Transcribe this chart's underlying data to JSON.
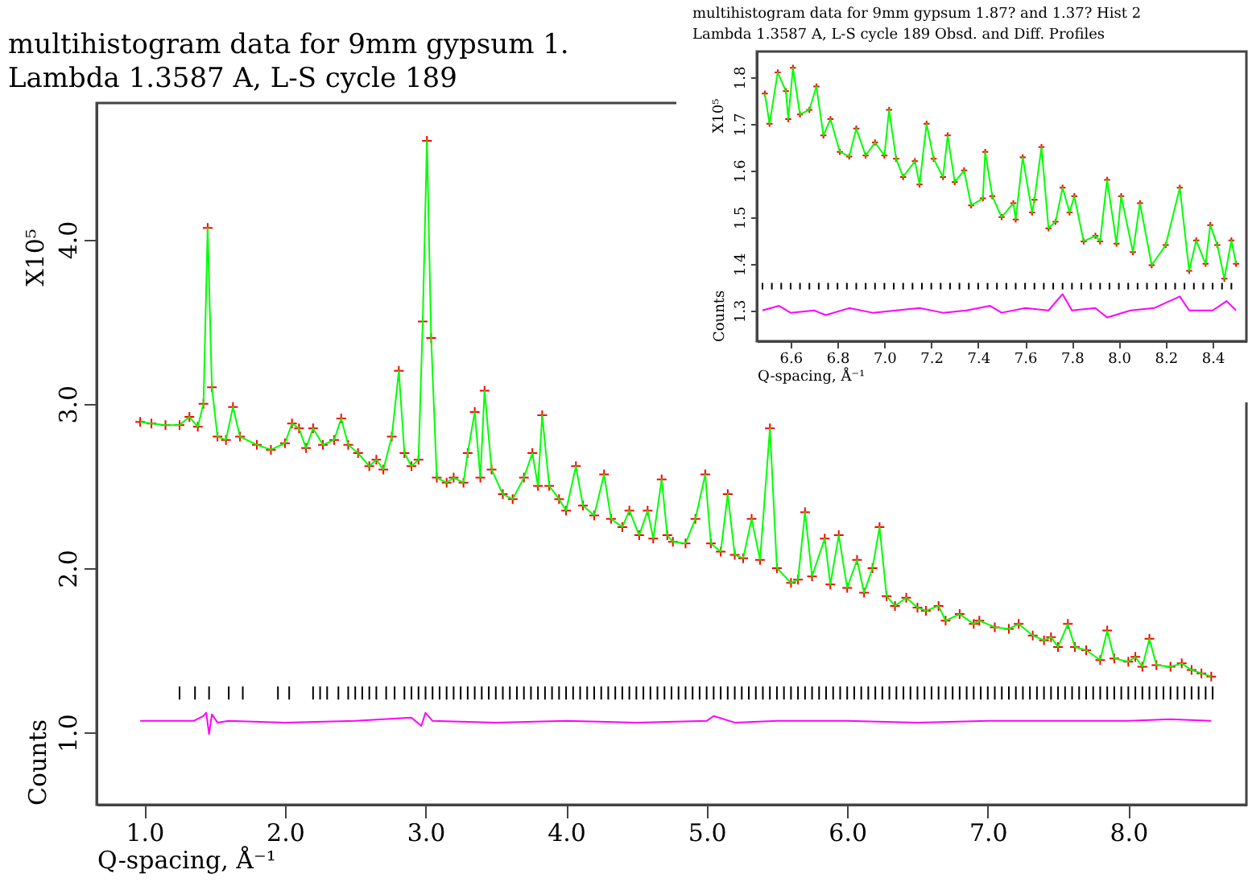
{
  "chart_data": [
    {
      "type": "line",
      "title": "multihistogram data for 9mm gypsum 1.",
      "subtitle": "Lambda 1.3587 A, L-S cycle  189",
      "xlabel": "Q-spacing, Å⁻¹",
      "ylabel": "Counts",
      "annotations": [
        "X10⁵"
      ],
      "xlim": [
        0.66,
        8.84
      ],
      "ylim": [
        0.56,
        4.83
      ],
      "xticks": [
        {
          "value": 1,
          "label": "1.0"
        },
        {
          "value": 2,
          "label": "2.0"
        },
        {
          "value": 3,
          "label": "3.0"
        },
        {
          "value": 4,
          "label": "4.0"
        },
        {
          "value": 5,
          "label": "5.0"
        },
        {
          "value": 6,
          "label": "6.0"
        },
        {
          "value": 7,
          "label": "7.0"
        },
        {
          "value": 8,
          "label": "8.0"
        }
      ],
      "yticks": [
        {
          "value": 1,
          "label": "1.0"
        },
        {
          "value": 2,
          "label": "2.0"
        },
        {
          "value": 3,
          "label": "3.0"
        },
        {
          "value": 4,
          "label": "4.0"
        }
      ],
      "x": [
        0.97,
        1.05,
        1.15,
        1.25,
        1.32,
        1.38,
        1.42,
        1.45,
        1.48,
        1.52,
        1.58,
        1.63,
        1.68,
        1.8,
        1.9,
        2.0,
        2.05,
        2.1,
        2.15,
        2.2,
        2.27,
        2.35,
        2.4,
        2.45,
        2.52,
        2.6,
        2.65,
        2.7,
        2.76,
        2.81,
        2.85,
        2.9,
        2.95,
        2.98,
        3.01,
        3.04,
        3.08,
        3.15,
        3.2,
        3.27,
        3.3,
        3.35,
        3.39,
        3.42,
        3.47,
        3.55,
        3.62,
        3.7,
        3.76,
        3.8,
        3.83,
        3.88,
        3.95,
        4.0,
        4.07,
        4.12,
        4.2,
        4.27,
        4.32,
        4.4,
        4.45,
        4.52,
        4.58,
        4.62,
        4.68,
        4.72,
        4.76,
        4.85,
        4.92,
        4.99,
        5.03,
        5.1,
        5.15,
        5.2,
        5.26,
        5.32,
        5.38,
        5.45,
        5.5,
        5.6,
        5.65,
        5.7,
        5.75,
        5.84,
        5.88,
        5.94,
        6.0,
        6.07,
        6.12,
        6.18,
        6.23,
        6.28,
        6.34,
        6.42,
        6.5,
        6.56,
        6.65,
        6.7,
        6.8,
        6.9,
        6.94,
        7.05,
        7.15,
        7.22,
        7.32,
        7.4,
        7.45,
        7.5,
        7.57,
        7.62,
        7.7,
        7.8,
        7.85,
        7.9,
        8.0,
        8.05,
        8.1,
        8.15,
        8.2,
        8.3,
        8.38,
        8.45,
        8.52,
        8.59
      ],
      "series": [
        {
          "type": "scatter",
          "marker": "cross",
          "color": "#ff0000",
          "values": [
            2.89,
            2.88,
            2.87,
            2.87,
            2.92,
            2.86,
            3.0,
            4.07,
            3.1,
            2.8,
            2.78,
            2.98,
            2.8,
            2.75,
            2.72,
            2.76,
            2.88,
            2.85,
            2.73,
            2.85,
            2.75,
            2.78,
            2.91,
            2.75,
            2.7,
            2.62,
            2.66,
            2.6,
            2.8,
            3.2,
            2.7,
            2.62,
            2.66,
            3.5,
            4.6,
            3.4,
            2.55,
            2.52,
            2.55,
            2.52,
            2.7,
            2.95,
            2.55,
            3.08,
            2.6,
            2.45,
            2.42,
            2.55,
            2.7,
            2.5,
            2.93,
            2.5,
            2.42,
            2.35,
            2.62,
            2.38,
            2.32,
            2.57,
            2.3,
            2.25,
            2.35,
            2.2,
            2.35,
            2.18,
            2.54,
            2.2,
            2.16,
            2.15,
            2.3,
            2.57,
            2.15,
            2.1,
            2.45,
            2.08,
            2.06,
            2.3,
            2.05,
            2.85,
            2.0,
            1.91,
            1.93,
            2.34,
            1.95,
            2.18,
            1.9,
            2.2,
            1.88,
            2.05,
            1.85,
            2.0,
            2.25,
            1.83,
            1.77,
            1.82,
            1.76,
            1.74,
            1.77,
            1.68,
            1.72,
            1.66,
            1.68,
            1.64,
            1.63,
            1.66,
            1.59,
            1.56,
            1.58,
            1.52,
            1.66,
            1.52,
            1.5,
            1.44,
            1.62,
            1.45,
            1.43,
            1.46,
            1.4,
            1.57,
            1.41,
            1.4,
            1.42,
            1.38,
            1.36,
            1.34
          ]
        },
        {
          "color": "#00ff00",
          "values": [
            2.89,
            2.88,
            2.87,
            2.87,
            2.92,
            2.86,
            3.0,
            4.07,
            3.1,
            2.8,
            2.78,
            2.98,
            2.8,
            2.75,
            2.72,
            2.76,
            2.88,
            2.85,
            2.73,
            2.85,
            2.75,
            2.78,
            2.91,
            2.75,
            2.7,
            2.62,
            2.66,
            2.6,
            2.8,
            3.2,
            2.7,
            2.62,
            2.66,
            3.5,
            4.6,
            3.4,
            2.55,
            2.52,
            2.55,
            2.52,
            2.7,
            2.95,
            2.55,
            3.08,
            2.6,
            2.45,
            2.42,
            2.55,
            2.7,
            2.5,
            2.93,
            2.5,
            2.42,
            2.35,
            2.62,
            2.38,
            2.32,
            2.57,
            2.3,
            2.25,
            2.35,
            2.2,
            2.35,
            2.18,
            2.54,
            2.2,
            2.16,
            2.15,
            2.3,
            2.57,
            2.15,
            2.1,
            2.45,
            2.08,
            2.06,
            2.3,
            2.05,
            2.85,
            2.0,
            1.91,
            1.93,
            2.34,
            1.95,
            2.18,
            1.9,
            2.2,
            1.88,
            2.05,
            1.85,
            2.0,
            2.25,
            1.83,
            1.77,
            1.82,
            1.76,
            1.74,
            1.77,
            1.68,
            1.72,
            1.66,
            1.68,
            1.64,
            1.63,
            1.66,
            1.59,
            1.56,
            1.58,
            1.52,
            1.66,
            1.52,
            1.5,
            1.44,
            1.62,
            1.45,
            1.43,
            1.46,
            1.4,
            1.57,
            1.41,
            1.4,
            1.42,
            1.38,
            1.36,
            1.34
          ]
        },
        {
          "type": "line",
          "color": "#ff00ff",
          "x": [
            0.97,
            1.2,
            1.35,
            1.42,
            1.44,
            1.46,
            1.48,
            1.52,
            1.6,
            2.0,
            2.5,
            2.9,
            2.97,
            3.0,
            3.05,
            3.5,
            4.0,
            4.5,
            5.0,
            5.05,
            5.2,
            5.5,
            6.0,
            6.5,
            7.0,
            7.5,
            8.0,
            8.3,
            8.59
          ],
          "values": [
            1.07,
            1.07,
            1.07,
            1.1,
            1.12,
            0.99,
            1.11,
            1.06,
            1.07,
            1.06,
            1.07,
            1.09,
            1.04,
            1.12,
            1.07,
            1.06,
            1.07,
            1.06,
            1.07,
            1.1,
            1.06,
            1.07,
            1.07,
            1.06,
            1.07,
            1.07,
            1.07,
            1.08,
            1.07
          ]
        },
        {
          "type": "bar",
          "color": "#000000",
          "x": [
            1.25,
            1.36,
            1.46,
            1.6,
            1.7,
            1.95,
            2.03,
            2.2,
            2.25,
            2.3,
            2.38,
            2.45,
            2.5,
            2.55,
            2.6,
            2.65,
            2.72,
            2.78,
            2.85,
            2.9,
            2.95,
            3.0,
            3.05,
            3.1,
            3.15,
            3.2,
            3.25,
            3.3,
            3.35,
            3.4,
            3.45,
            3.5,
            3.55,
            3.6,
            3.65,
            3.7,
            3.75,
            3.8,
            3.85,
            3.9,
            3.95,
            4.0,
            4.05,
            4.1,
            4.15,
            4.2,
            4.25,
            4.3,
            4.35,
            4.4,
            4.45,
            4.5,
            4.55,
            4.6,
            4.65,
            4.7,
            4.75,
            4.8,
            4.85,
            4.9,
            4.95,
            5.0,
            5.05,
            5.1,
            5.15,
            5.2,
            5.25,
            5.3,
            5.35,
            5.4,
            5.45,
            5.5,
            5.55,
            5.6,
            5.65,
            5.7,
            5.75,
            5.8,
            5.85,
            5.9,
            5.95,
            6.0,
            6.05,
            6.1,
            6.15,
            6.2,
            6.25,
            6.3,
            6.35,
            6.4,
            6.45,
            6.5,
            6.55,
            6.6,
            6.65,
            6.7,
            6.75,
            6.8,
            6.85,
            6.9,
            6.95,
            7.0,
            7.05,
            7.1,
            7.15,
            7.2,
            7.25,
            7.3,
            7.35,
            7.4,
            7.45,
            7.5,
            7.55,
            7.6,
            7.65,
            7.7,
            7.75,
            7.8,
            7.85,
            7.9,
            7.95,
            8.0,
            8.05,
            8.1,
            8.15,
            8.2,
            8.25,
            8.3,
            8.35,
            8.4,
            8.45,
            8.5,
            8.55,
            8.6
          ],
          "base": [
            1.2,
            1.2,
            1.2,
            1.2,
            1.2,
            1.2,
            1.2,
            1.2,
            1.2,
            1.2,
            1.2,
            1.2,
            1.2,
            1.2,
            1.2,
            1.2,
            1.2,
            1.2,
            1.2,
            1.2,
            1.2,
            1.2,
            1.2,
            1.2,
            1.2,
            1.2,
            1.2,
            1.2,
            1.2,
            1.2,
            1.2,
            1.2,
            1.2,
            1.2,
            1.2,
            1.2,
            1.2,
            1.2,
            1.2,
            1.2,
            1.2,
            1.2,
            1.2,
            1.2,
            1.2,
            1.2,
            1.2,
            1.2,
            1.2,
            1.2,
            1.2,
            1.2,
            1.2,
            1.2,
            1.2,
            1.2,
            1.2,
            1.2,
            1.2,
            1.2,
            1.2,
            1.2,
            1.2,
            1.2,
            1.2,
            1.2,
            1.2,
            1.2,
            1.2,
            1.2,
            1.2,
            1.2,
            1.2,
            1.2,
            1.2,
            1.2,
            1.2,
            1.2,
            1.2,
            1.2,
            1.2,
            1.2,
            1.2,
            1.2,
            1.2,
            1.2,
            1.2,
            1.2,
            1.2,
            1.2,
            1.2,
            1.2,
            1.2,
            1.2,
            1.2,
            1.2,
            1.2,
            1.2,
            1.2,
            1.2,
            1.2,
            1.2,
            1.2,
            1.2,
            1.2,
            1.2,
            1.2,
            1.2,
            1.2,
            1.2,
            1.2,
            1.2,
            1.2,
            1.2,
            1.2,
            1.2,
            1.2,
            1.2,
            1.2,
            1.2,
            1.2,
            1.2,
            1.2,
            1.2,
            1.2,
            1.2,
            1.2,
            1.2,
            1.2,
            1.2,
            1.2,
            1.2,
            1.2,
            1.2
          ],
          "values": [
            0.08,
            0.08,
            0.08,
            0.08,
            0.08,
            0.08,
            0.08,
            0.08,
            0.08,
            0.08,
            0.08,
            0.08,
            0.08,
            0.08,
            0.08,
            0.08,
            0.08,
            0.08,
            0.08,
            0.08,
            0.08,
            0.08,
            0.08,
            0.08,
            0.08,
            0.08,
            0.08,
            0.08,
            0.08,
            0.08,
            0.08,
            0.08,
            0.08,
            0.08,
            0.08,
            0.08,
            0.08,
            0.08,
            0.08,
            0.08,
            0.08,
            0.08,
            0.08,
            0.08,
            0.08,
            0.08,
            0.08,
            0.08,
            0.08,
            0.08,
            0.08,
            0.08,
            0.08,
            0.08,
            0.08,
            0.08,
            0.08,
            0.08,
            0.08,
            0.08,
            0.08,
            0.08,
            0.08,
            0.08,
            0.08,
            0.08,
            0.08,
            0.08,
            0.08,
            0.08,
            0.08,
            0.08,
            0.08,
            0.08,
            0.08,
            0.08,
            0.08,
            0.08,
            0.08,
            0.08,
            0.08,
            0.08,
            0.08,
            0.08,
            0.08,
            0.08,
            0.08,
            0.08,
            0.08,
            0.08,
            0.08,
            0.08,
            0.08,
            0.08,
            0.08,
            0.08,
            0.08,
            0.08,
            0.08,
            0.08,
            0.08,
            0.08,
            0.08,
            0.08,
            0.08,
            0.08,
            0.08,
            0.08,
            0.08,
            0.08,
            0.08,
            0.08,
            0.08,
            0.08,
            0.08,
            0.08,
            0.08,
            0.08,
            0.08,
            0.08,
            0.08,
            0.08,
            0.08,
            0.08,
            0.08,
            0.08,
            0.08,
            0.08,
            0.08,
            0.08,
            0.08,
            0.08,
            0.08,
            0.08
          ]
        }
      ]
    },
    {
      "type": "line",
      "title": "multihistogram data for 9mm gypsum 1.87? and 1.37?       Hist  2",
      "subtitle": "Lambda 1.3587 A, L-S cycle  189          Obsd. and Diff. Profiles",
      "xlabel": "Q-spacing, Å⁻¹",
      "ylabel": "Counts",
      "annotations": [
        "X10⁵"
      ],
      "xlim": [
        6.456,
        8.544
      ],
      "ylim": [
        1.234,
        1.855
      ],
      "xticks": [
        6.6,
        6.8,
        {
          "value": 7,
          "label": "7.0"
        },
        7.2,
        7.4,
        7.6,
        7.8,
        {
          "value": 8,
          "label": "8.0"
        },
        8.2,
        8.4
      ],
      "yticks": [
        1.3,
        1.4,
        1.5,
        1.6,
        1.7,
        1.8
      ],
      "x": [
        6.49,
        6.51,
        6.545,
        6.58,
        6.59,
        6.61,
        6.64,
        6.68,
        6.71,
        6.74,
        6.77,
        6.81,
        6.85,
        6.88,
        6.92,
        6.96,
        7.0,
        7.02,
        7.05,
        7.08,
        7.13,
        7.15,
        7.18,
        7.21,
        7.25,
        7.27,
        7.3,
        7.34,
        7.37,
        7.42,
        7.43,
        7.46,
        7.5,
        7.55,
        7.56,
        7.59,
        7.63,
        7.64,
        7.67,
        7.7,
        7.73,
        7.76,
        7.79,
        7.81,
        7.85,
        7.9,
        7.92,
        7.95,
        7.99,
        8.01,
        8.06,
        8.09,
        8.14,
        8.2,
        8.26,
        8.3,
        8.33,
        8.37,
        8.39,
        8.42,
        8.45,
        8.48,
        8.5
      ],
      "series": [
        {
          "type": "scatter",
          "marker": "cross",
          "color": "#ff0000",
          "values": [
            1.765,
            1.7,
            1.81,
            1.77,
            1.71,
            1.82,
            1.72,
            1.73,
            1.78,
            1.675,
            1.71,
            1.64,
            1.63,
            1.69,
            1.632,
            1.66,
            1.632,
            1.73,
            1.625,
            1.586,
            1.62,
            1.57,
            1.7,
            1.625,
            1.586,
            1.675,
            1.575,
            1.6,
            1.525,
            1.54,
            1.64,
            1.545,
            1.5,
            1.53,
            1.495,
            1.628,
            1.51,
            1.537,
            1.65,
            1.476,
            1.49,
            1.563,
            1.51,
            1.545,
            1.448,
            1.46,
            1.448,
            1.58,
            1.443,
            1.545,
            1.425,
            1.53,
            1.397,
            1.44,
            1.563,
            1.385,
            1.45,
            1.4,
            1.483,
            1.44,
            1.368,
            1.45,
            1.4
          ]
        },
        {
          "color": "#00ff00",
          "values": [
            1.765,
            1.7,
            1.81,
            1.77,
            1.71,
            1.82,
            1.72,
            1.73,
            1.78,
            1.675,
            1.71,
            1.64,
            1.63,
            1.69,
            1.632,
            1.66,
            1.632,
            1.73,
            1.625,
            1.586,
            1.62,
            1.57,
            1.7,
            1.625,
            1.586,
            1.675,
            1.575,
            1.6,
            1.525,
            1.54,
            1.64,
            1.545,
            1.5,
            1.53,
            1.495,
            1.628,
            1.51,
            1.537,
            1.65,
            1.476,
            1.49,
            1.563,
            1.51,
            1.545,
            1.448,
            1.46,
            1.448,
            1.58,
            1.443,
            1.545,
            1.425,
            1.53,
            1.397,
            1.44,
            1.563,
            1.385,
            1.45,
            1.4,
            1.483,
            1.44,
            1.368,
            1.45,
            1.4
          ]
        },
        {
          "type": "line",
          "color": "#ff00ff",
          "x": [
            6.48,
            6.55,
            6.6,
            6.7,
            6.75,
            6.85,
            6.95,
            7.05,
            7.15,
            7.25,
            7.35,
            7.45,
            7.5,
            7.6,
            7.7,
            7.76,
            7.8,
            7.9,
            7.95,
            8.05,
            8.15,
            8.26,
            8.3,
            8.4,
            8.46,
            8.5
          ],
          "values": [
            1.3,
            1.31,
            1.295,
            1.3,
            1.29,
            1.305,
            1.295,
            1.3,
            1.305,
            1.295,
            1.3,
            1.31,
            1.295,
            1.305,
            1.3,
            1.335,
            1.3,
            1.305,
            1.285,
            1.3,
            1.305,
            1.33,
            1.3,
            1.3,
            1.32,
            1.3
          ]
        },
        {
          "type": "bar",
          "color": "#000000",
          "x": [
            6.48,
            6.52,
            6.56,
            6.6,
            6.64,
            6.68,
            6.72,
            6.76,
            6.8,
            6.84,
            6.88,
            6.92,
            6.96,
            7.0,
            7.04,
            7.08,
            7.12,
            7.16,
            7.2,
            7.24,
            7.28,
            7.32,
            7.36,
            7.4,
            7.44,
            7.48,
            7.52,
            7.56,
            7.6,
            7.64,
            7.68,
            7.72,
            7.76,
            7.8,
            7.84,
            7.88,
            7.92,
            7.96,
            8.0,
            8.04,
            8.08,
            8.12,
            8.16,
            8.2,
            8.24,
            8.28,
            8.32,
            8.36,
            8.4,
            8.44,
            8.48
          ],
          "base": [
            1.345,
            1.345,
            1.345,
            1.345,
            1.345,
            1.345,
            1.345,
            1.345,
            1.345,
            1.345,
            1.345,
            1.345,
            1.345,
            1.345,
            1.345,
            1.345,
            1.345,
            1.345,
            1.345,
            1.345,
            1.345,
            1.345,
            1.345,
            1.345,
            1.345,
            1.345,
            1.345,
            1.345,
            1.345,
            1.345,
            1.345,
            1.345,
            1.345,
            1.345,
            1.345,
            1.345,
            1.345,
            1.345,
            1.345,
            1.345,
            1.345,
            1.345,
            1.345,
            1.345,
            1.345,
            1.345,
            1.345,
            1.345,
            1.345,
            1.345,
            1.345
          ],
          "values": [
            0.014,
            0.014,
            0.014,
            0.014,
            0.014,
            0.014,
            0.014,
            0.014,
            0.014,
            0.014,
            0.014,
            0.014,
            0.014,
            0.014,
            0.014,
            0.014,
            0.014,
            0.014,
            0.014,
            0.014,
            0.014,
            0.014,
            0.014,
            0.014,
            0.014,
            0.014,
            0.014,
            0.014,
            0.014,
            0.014,
            0.014,
            0.014,
            0.014,
            0.014,
            0.014,
            0.014,
            0.014,
            0.014,
            0.014,
            0.014,
            0.014,
            0.014,
            0.014,
            0.014,
            0.014,
            0.014,
            0.014,
            0.014,
            0.014,
            0.014,
            0.014
          ]
        }
      ]
    }
  ]
}
